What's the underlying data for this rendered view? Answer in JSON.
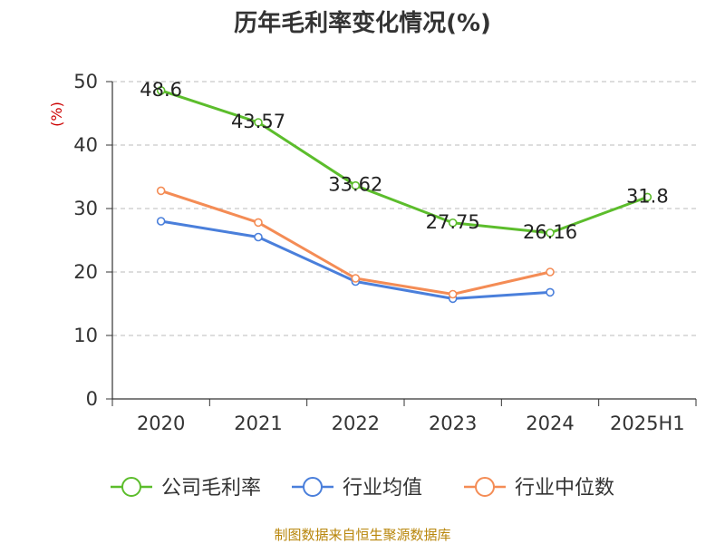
{
  "chart_data": {
    "type": "line",
    "title": "历年毛利率变化情况(%)",
    "ylabel": "(%)",
    "xlabel": "",
    "categories": [
      "2020",
      "2021",
      "2022",
      "2023",
      "2024",
      "2025H1"
    ],
    "ylim": [
      0,
      50
    ],
    "yticks": [
      0,
      10,
      20,
      30,
      40,
      50
    ],
    "grid": true,
    "legend_position": "bottom",
    "series": [
      {
        "name": "公司毛利率",
        "color": "#5cbd2c",
        "values": [
          48.6,
          43.57,
          33.62,
          27.75,
          26.16,
          31.8
        ],
        "labels": [
          "48.6",
          "43.57",
          "33.62",
          "27.75",
          "26.16",
          "31.8"
        ]
      },
      {
        "name": "行业均值",
        "color": "#4a7fdb",
        "values": [
          28.0,
          25.5,
          18.5,
          15.8,
          16.8,
          null
        ]
      },
      {
        "name": "行业中位数",
        "color": "#f48c55",
        "values": [
          32.8,
          27.8,
          19.0,
          16.5,
          20.0,
          null
        ]
      }
    ]
  },
  "source_text": "制图数据来自恒生聚源数据库"
}
